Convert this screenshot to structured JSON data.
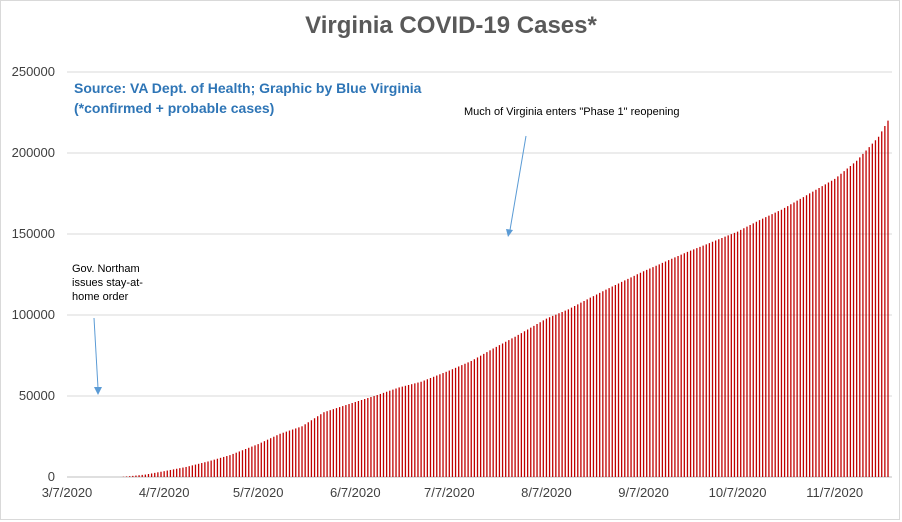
{
  "chart_data": {
    "type": "bar",
    "title": "Virginia COVID-19 Cases*",
    "source_lines": [
      "Source: VA Dept. of Health; Graphic by Blue Virginia",
      "(*confirmed + probable cases)"
    ],
    "ylim": [
      0,
      250000
    ],
    "y_ticks": [
      0,
      50000,
      100000,
      150000,
      200000,
      250000
    ],
    "x_range": [
      "2020-03-07",
      "2020-11-24"
    ],
    "x_ticks": [
      {
        "date": "2020-03-07",
        "label": "3/7/2020"
      },
      {
        "date": "2020-04-07",
        "label": "4/7/2020"
      },
      {
        "date": "2020-05-07",
        "label": "5/7/2020"
      },
      {
        "date": "2020-06-07",
        "label": "6/7/2020"
      },
      {
        "date": "2020-07-07",
        "label": "7/7/2020"
      },
      {
        "date": "2020-08-07",
        "label": "8/7/2020"
      },
      {
        "date": "2020-09-07",
        "label": "9/7/2020"
      },
      {
        "date": "2020-10-07",
        "label": "10/7/2020"
      },
      {
        "date": "2020-11-07",
        "label": "11/7/2020"
      }
    ],
    "grid": true,
    "bar_color": "#c00000",
    "series": [
      {
        "points": [
          [
            "2020-03-07",
            0
          ],
          [
            "2020-03-17",
            0
          ],
          [
            "2020-03-24",
            0
          ],
          [
            "2020-03-27",
            500
          ],
          [
            "2020-04-01",
            1500
          ],
          [
            "2020-04-07",
            3600
          ],
          [
            "2020-04-14",
            6200
          ],
          [
            "2020-04-21",
            9600
          ],
          [
            "2020-04-28",
            13500
          ],
          [
            "2020-05-07",
            20300
          ],
          [
            "2020-05-14",
            26700
          ],
          [
            "2020-05-21",
            31300
          ],
          [
            "2020-05-28",
            40000
          ],
          [
            "2020-06-07",
            46300
          ],
          [
            "2020-06-14",
            50600
          ],
          [
            "2020-06-21",
            55300
          ],
          [
            "2020-06-28",
            58800
          ],
          [
            "2020-07-07",
            65700
          ],
          [
            "2020-07-14",
            71600
          ],
          [
            "2020-07-21",
            79300
          ],
          [
            "2020-07-28",
            86600
          ],
          [
            "2020-08-07",
            97800
          ],
          [
            "2020-08-14",
            103500
          ],
          [
            "2020-08-21",
            110700
          ],
          [
            "2020-08-28",
            117600
          ],
          [
            "2020-09-07",
            127000
          ],
          [
            "2020-09-14",
            133000
          ],
          [
            "2020-09-21",
            139000
          ],
          [
            "2020-09-28",
            144400
          ],
          [
            "2020-10-07",
            151500
          ],
          [
            "2020-10-14",
            158600
          ],
          [
            "2020-10-21",
            165000
          ],
          [
            "2020-10-28",
            172800
          ],
          [
            "2020-11-07",
            184000
          ],
          [
            "2020-11-14",
            195200
          ],
          [
            "2020-11-21",
            210000
          ],
          [
            "2020-11-24",
            220000
          ]
        ]
      }
    ],
    "annotations": [
      {
        "text": "Gov. Northam issues stay-at-home order",
        "lines": [
          "Gov. Northam",
          "issues stay-at-",
          "home order"
        ]
      },
      {
        "text": "Much of Virginia enters \"Phase 1\" reopening"
      }
    ]
  }
}
